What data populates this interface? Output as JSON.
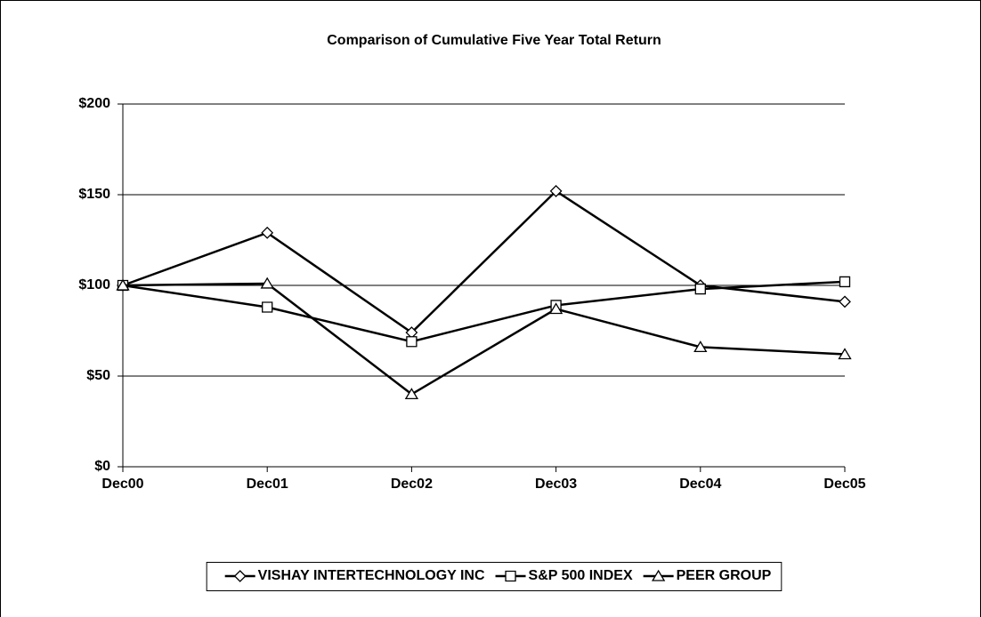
{
  "chart_data": {
    "type": "line",
    "title": "Comparison of Cumulative Five Year Total Return",
    "categories": [
      "Dec00",
      "Dec01",
      "Dec02",
      "Dec03",
      "Dec04",
      "Dec05"
    ],
    "series": [
      {
        "name": "VISHAY INTERTECHNOLOGY INC",
        "color": "#000000",
        "marker": "diamond",
        "values": [
          100,
          129,
          74,
          152,
          100,
          91
        ]
      },
      {
        "name": "S&P 500 INDEX",
        "color": "#000000",
        "marker": "square",
        "values": [
          100,
          88,
          69,
          89,
          98,
          102
        ]
      },
      {
        "name": "PEER GROUP",
        "color": "#000000",
        "marker": "triangle",
        "values": [
          100,
          101,
          40,
          87,
          66,
          62
        ]
      }
    ],
    "ylim": [
      0,
      200
    ],
    "yticks": [
      {
        "value": 0,
        "label": "$0"
      },
      {
        "value": 50,
        "label": "$50"
      },
      {
        "value": 100,
        "label": "$100"
      },
      {
        "value": 150,
        "label": "$150"
      },
      {
        "value": 200,
        "label": "$200"
      }
    ],
    "grid": true,
    "legend": "bottom"
  }
}
